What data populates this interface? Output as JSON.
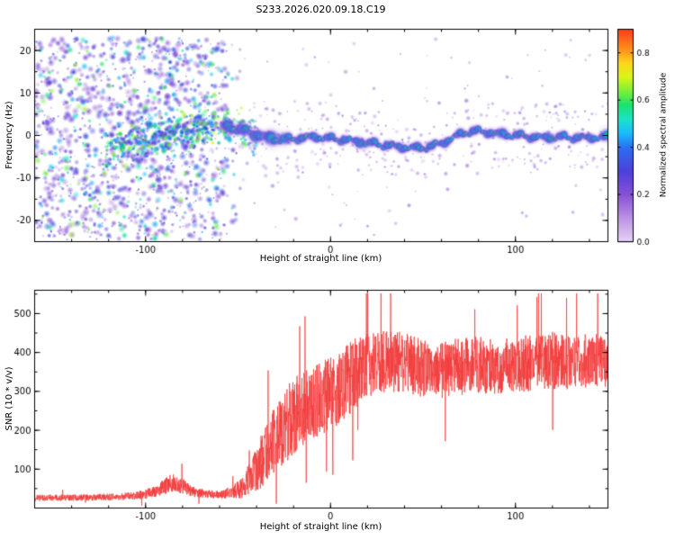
{
  "figure_title": "S233.2026.020.09.18.C19",
  "chart_data": [
    {
      "type": "heatmap",
      "title": "S233.2026.020.09.18.C19",
      "xlabel": "Height of straight line (km)",
      "ylabel": "Frequency (Hz)",
      "xlim": [
        -160,
        150
      ],
      "ylim": [
        -25,
        25
      ],
      "x_ticks": [
        -100,
        0,
        100
      ],
      "x_minor_step": 20,
      "y_ticks": [
        -20,
        -10,
        0,
        10,
        20
      ],
      "y_minor_step": 5,
      "background": "#ffffff",
      "colorbar": {
        "label": "Normalized spectral amplitude",
        "ticks": [
          0,
          0.2,
          0.4,
          0.6,
          0.8
        ],
        "range": [
          0,
          0.9
        ]
      },
      "colormap_stops": [
        [
          0.0,
          "#e3d0f2"
        ],
        [
          0.1,
          "#b488e2"
        ],
        [
          0.2,
          "#7a3fd0"
        ],
        [
          0.3,
          "#3c2bd8"
        ],
        [
          0.4,
          "#1560f0"
        ],
        [
          0.46,
          "#00b4ff"
        ],
        [
          0.52,
          "#00e0c0"
        ],
        [
          0.58,
          "#00e060"
        ],
        [
          0.64,
          "#70ee20"
        ],
        [
          0.7,
          "#d8f400"
        ],
        [
          0.76,
          "#ffd000"
        ],
        [
          0.82,
          "#ff8000"
        ],
        [
          0.9,
          "#ff2800"
        ],
        [
          1.0,
          "#e00050"
        ]
      ],
      "features": {
        "noise_field": {
          "x_range": [
            -160,
            -48
          ],
          "freq_range": [
            -24.5,
            23
          ],
          "amplitude_range": [
            0.07,
            0.66
          ],
          "blob_count": 1500
        },
        "noisy_band": {
          "x_range": [
            -122,
            -40
          ],
          "spread_hz": 4.5,
          "amplitude_range": [
            0.25,
            0.7
          ],
          "blob_count": 420
        },
        "sparse_specks": {
          "x_range": [
            -48,
            150
          ],
          "amplitude_range": [
            0.06,
            0.24
          ],
          "blob_count": 420
        },
        "echo_trace": {
          "x_range": [
            -58,
            150
          ],
          "core_amplitude_range": [
            0.5,
            0.95
          ],
          "centerline": [
            [
              -115,
              -2
            ],
            [
              -105,
              -1.5
            ],
            [
              -95,
              -0.5
            ],
            [
              -88,
              0.5
            ],
            [
              -80,
              1
            ],
            [
              -72,
              1.5
            ],
            [
              -65,
              2
            ],
            [
              -58,
              2.2
            ],
            [
              -50,
              1.5
            ],
            [
              -42,
              0.5
            ],
            [
              -34,
              -0.5
            ],
            [
              -28,
              -1
            ],
            [
              -20,
              -0.8
            ],
            [
              -12,
              -0.3
            ],
            [
              -5,
              -0.5
            ],
            [
              0,
              -0.8
            ],
            [
              8,
              -1
            ],
            [
              16,
              -1.5
            ],
            [
              24,
              -2
            ],
            [
              32,
              -2.4
            ],
            [
              40,
              -2.8
            ],
            [
              48,
              -3
            ],
            [
              54,
              -2.6
            ],
            [
              60,
              -1.8
            ],
            [
              66,
              -0.6
            ],
            [
              72,
              0.6
            ],
            [
              78,
              1
            ],
            [
              85,
              0.8
            ],
            [
              92,
              0.3
            ],
            [
              100,
              0
            ],
            [
              108,
              -0.3
            ],
            [
              116,
              -0.5
            ],
            [
              124,
              -0.4
            ],
            [
              132,
              -0.5
            ],
            [
              140,
              -0.5
            ],
            [
              150,
              -0.5
            ]
          ]
        }
      }
    },
    {
      "type": "line",
      "xlabel": "Height of straight line (km)",
      "ylabel": "SNR (10 * v/v)",
      "xlim": [
        -160,
        150
      ],
      "ylim": [
        0,
        560
      ],
      "x_ticks": [
        -100,
        0,
        100
      ],
      "x_minor_step": 20,
      "y_ticks": [
        100,
        200,
        300,
        400,
        500
      ],
      "y_minor_step": 50,
      "color": "#f23b3b",
      "envelope_xbn": [
        [
          -160,
          25,
          12
        ],
        [
          -130,
          26,
          12
        ],
        [
          -105,
          30,
          15
        ],
        [
          -95,
          40,
          22
        ],
        [
          -86,
          62,
          35
        ],
        [
          -80,
          55,
          30
        ],
        [
          -73,
          38,
          18
        ],
        [
          -62,
          33,
          15
        ],
        [
          -54,
          38,
          22
        ],
        [
          -48,
          48,
          40
        ],
        [
          -44,
          70,
          60
        ],
        [
          -40,
          95,
          85
        ],
        [
          -36,
          120,
          110
        ],
        [
          -32,
          150,
          130
        ],
        [
          -28,
          170,
          140
        ],
        [
          -24,
          200,
          150
        ],
        [
          -20,
          225,
          150
        ],
        [
          -15,
          240,
          145
        ],
        [
          -10,
          255,
          140
        ],
        [
          -5,
          270,
          140
        ],
        [
          0,
          285,
          140
        ],
        [
          5,
          300,
          140
        ],
        [
          10,
          320,
          140
        ],
        [
          15,
          340,
          135
        ],
        [
          20,
          360,
          130
        ],
        [
          30,
          370,
          120
        ],
        [
          40,
          365,
          115
        ],
        [
          50,
          350,
          112
        ],
        [
          60,
          345,
          110
        ],
        [
          70,
          355,
          110
        ],
        [
          80,
          360,
          108
        ],
        [
          90,
          355,
          105
        ],
        [
          100,
          360,
          105
        ],
        [
          110,
          365,
          110
        ],
        [
          120,
          370,
          110
        ],
        [
          130,
          365,
          105
        ],
        [
          140,
          370,
          105
        ],
        [
          150,
          368,
          100
        ]
      ]
    }
  ]
}
